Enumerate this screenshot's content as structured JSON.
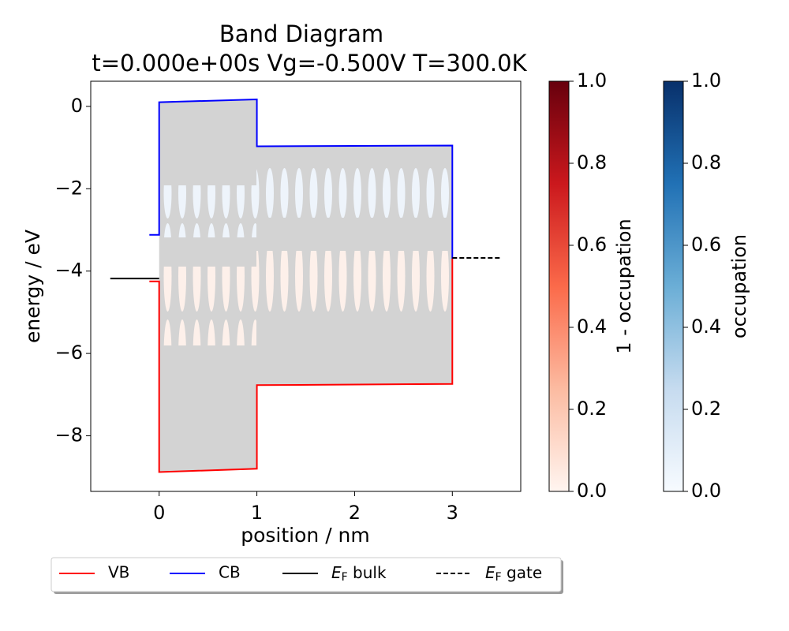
{
  "chart_data": {
    "type": "line",
    "title": "Band Diagram",
    "subtitle": "t=0.000e+00s Vg=-0.500V T=300.0K",
    "x_label": "position / nm",
    "y_label": "energy / eV",
    "xlim": [
      -0.7,
      3.7
    ],
    "ylim": [
      -9.35,
      0.61
    ],
    "xticks": [
      0,
      1,
      2,
      3
    ],
    "yticks": [
      {
        "value": 0,
        "label": "0"
      },
      {
        "value": -2,
        "label": "−2"
      },
      {
        "value": -4,
        "label": "−4"
      },
      {
        "value": -6,
        "label": "−6"
      },
      {
        "value": -8,
        "label": "−8"
      }
    ],
    "fill_color": "#d3d3d3",
    "series": [
      {
        "name": "VB",
        "color": "#ff0000",
        "linestyle": "solid",
        "x": [
          -0.1,
          0,
          0,
          1,
          1,
          3,
          3
        ],
        "values": [
          -4.25,
          -4.25,
          -8.88,
          -8.8,
          -6.77,
          -6.74,
          -3.7
        ]
      },
      {
        "name": "CB",
        "color": "#0000ff",
        "linestyle": "solid",
        "x": [
          -0.1,
          0,
          0,
          1,
          1,
          3,
          3
        ],
        "values": [
          -3.12,
          -3.12,
          0.1,
          0.17,
          -0.97,
          -0.95,
          -3.7
        ]
      },
      {
        "name": "EF bulk",
        "color": "#000000",
        "linestyle": "solid",
        "x": [
          -0.5,
          0
        ],
        "values": [
          -4.18,
          -4.18
        ]
      },
      {
        "name": "EF gate",
        "color": "#000000",
        "linestyle": "dashed",
        "x": [
          3,
          3.5
        ],
        "values": [
          -3.68,
          -3.68
        ]
      }
    ],
    "colorbars": [
      {
        "label": "1 - occupation",
        "lim": [
          0,
          1
        ],
        "colors": [
          "#fff5f0",
          "#fcbba1",
          "#fb6a4a",
          "#cb181d",
          "#67000d"
        ],
        "ticks": [
          {
            "value": 0,
            "label": "0.0"
          },
          0.2,
          0.4,
          0.6,
          0.8,
          {
            "value": 1,
            "label": "1.0"
          }
        ]
      },
      {
        "label": "occupation",
        "lim": [
          0,
          1
        ],
        "colors": [
          "#f7fbff",
          "#c6dbef",
          "#6baed6",
          "#2171b5",
          "#08306b"
        ],
        "ticks": [
          {
            "value": 0,
            "label": "0.0"
          },
          0.2,
          0.4,
          0.6,
          0.8,
          {
            "value": 1,
            "label": "1.0"
          }
        ]
      }
    ]
  }
}
